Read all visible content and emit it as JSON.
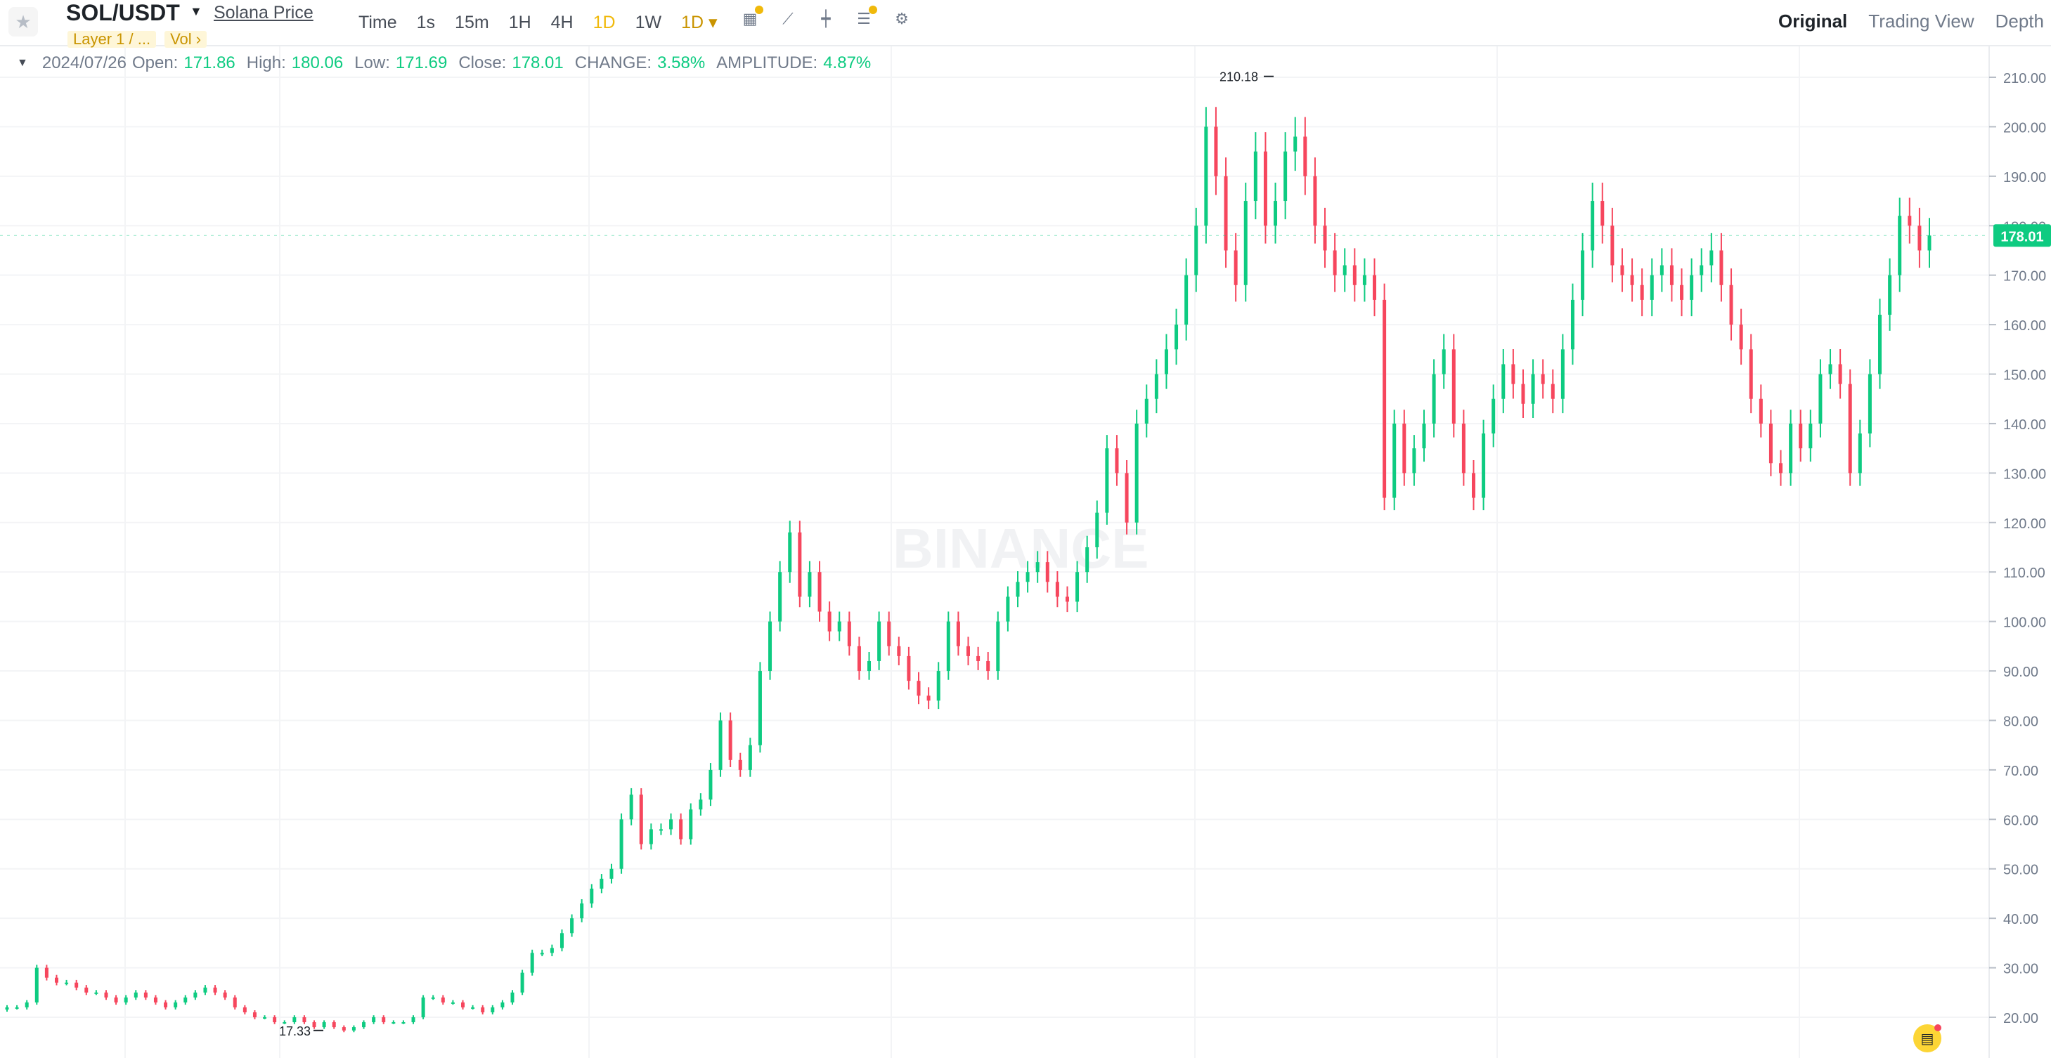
{
  "header": {
    "pair": "SOL/USDT",
    "pair_link": "Solana Price",
    "tags": [
      "Layer 1 / ...",
      "Vol  ›"
    ],
    "intervals": [
      "Time",
      "1s",
      "15m",
      "1H",
      "4H",
      "1D",
      "1W",
      "1D ▾"
    ],
    "views": [
      "Original",
      "Trading View",
      "Depth"
    ]
  },
  "info": {
    "date": "2024/07/26",
    "open_label": "Open:",
    "open": "171.86",
    "high_label": "High:",
    "high": "180.06",
    "low_label": "Low:",
    "low": "171.69",
    "close_label": "Close:",
    "close": "178.01",
    "change_label": "CHANGE:",
    "change": "3.58%",
    "amplitude_label": "AMPLITUDE:",
    "amplitude": "4.87%"
  },
  "colors": {
    "up": "#0ecb81",
    "down": "#f6465d",
    "accent": "#f0b90b"
  },
  "icons": [
    "star-icon",
    "caret-down-icon",
    "calendar-icon",
    "line-chart-icon",
    "candle-icon",
    "indicator-icon",
    "gear-icon",
    "order-icon"
  ],
  "watermark": "BINANCE",
  "chart_data": {
    "type": "candlestick",
    "ylim": [
      20,
      210
    ],
    "y_ticks": [
      "210.00",
      "200.00",
      "190.00",
      "180.00",
      "170.00",
      "160.00",
      "150.00",
      "140.00",
      "130.00",
      "120.00",
      "110.00",
      "100.00",
      "90.00",
      "80.00",
      "70.00",
      "60.00",
      "50.00",
      "40.00",
      "30.00",
      "20.00"
    ],
    "current_price": "178.01",
    "high_marker": "210.18",
    "low_marker": "17.33",
    "series": [
      {
        "name": "SOL/USDT",
        "values": [
          22,
          22,
          23,
          30,
          28,
          27,
          27,
          26,
          25,
          25,
          24,
          23,
          24,
          25,
          24,
          23,
          22,
          23,
          24,
          25,
          26,
          25,
          24,
          22,
          21,
          20,
          20,
          19,
          19,
          20,
          19,
          18,
          19,
          18,
          17.33,
          18,
          19,
          20,
          19,
          19,
          19,
          20,
          24,
          24,
          23,
          23,
          22,
          22,
          21,
          22,
          23,
          25,
          29,
          33,
          33,
          34,
          37,
          40,
          43,
          46,
          48,
          50,
          60,
          65,
          55,
          58,
          58,
          60,
          56,
          62,
          64,
          70,
          80,
          72,
          70,
          75,
          90,
          100,
          110,
          118,
          105,
          110,
          102,
          98,
          100,
          95,
          90,
          92,
          100,
          95,
          93,
          88,
          85,
          84,
          90,
          100,
          95,
          93,
          92,
          90,
          100,
          105,
          108,
          110,
          112,
          108,
          105,
          104,
          110,
          115,
          122,
          135,
          130,
          120,
          140,
          145,
          150,
          155,
          160,
          170,
          180,
          200,
          190,
          175,
          168,
          185,
          195,
          180,
          185,
          195,
          198,
          190,
          180,
          175,
          170,
          172,
          168,
          170,
          165,
          125,
          140,
          130,
          135,
          140,
          150,
          155,
          140,
          130,
          125,
          138,
          145,
          152,
          148,
          144,
          150,
          148,
          145,
          155,
          165,
          175,
          185,
          180,
          172,
          170,
          168,
          165,
          170,
          172,
          168,
          165,
          170,
          172,
          175,
          168,
          160,
          155,
          145,
          140,
          132,
          130,
          140,
          135,
          140,
          150,
          152,
          148,
          130,
          138,
          150,
          162,
          170,
          182,
          180,
          175,
          178.01
        ]
      }
    ]
  }
}
